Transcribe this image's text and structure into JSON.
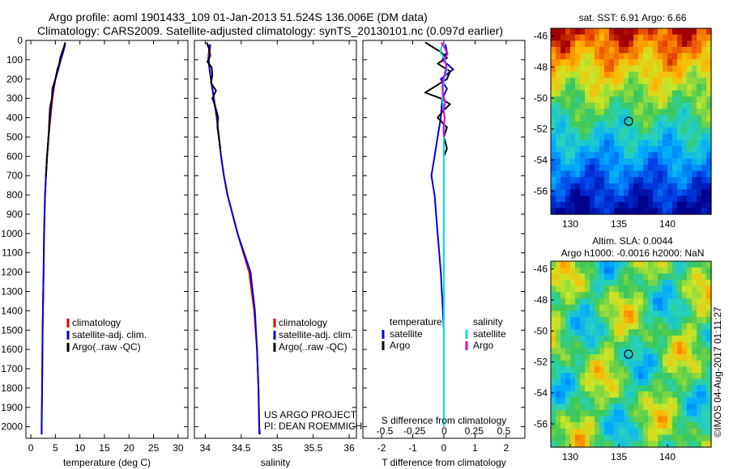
{
  "header": {
    "line1": "Argo profile: aoml 1901433_109 01-Jan-2013 51.524S 136.006E (DM data)",
    "line2": "Climatology: CARS2009. Satellite-adjusted climatology: synTS_20130101.nc (0.097d earlier)"
  },
  "colors": {
    "climatology": "#e00000",
    "satellite": "#0000e0",
    "argo": "#000000",
    "sal_satellite": "#00e0e0",
    "sal_argo": "#e000e0"
  },
  "chart_data": [
    {
      "id": "temperature",
      "type": "line",
      "xlabel": "temperature (deg C)",
      "xlim": [
        -1,
        32
      ],
      "xticks": [
        0,
        5,
        10,
        15,
        20,
        25,
        30
      ],
      "xticklabels": [
        "0",
        "5",
        "10",
        "15",
        "20",
        "25",
        "30"
      ],
      "ylim": [
        2060,
        0
      ],
      "yticks": [
        0,
        100,
        200,
        300,
        400,
        500,
        600,
        700,
        800,
        900,
        1000,
        1100,
        1200,
        1300,
        1400,
        1500,
        1600,
        1700,
        1800,
        1900,
        2000
      ],
      "legend": [
        "climatology",
        "satellite-adj. clim.",
        "Argo(..raw -QC)"
      ],
      "series": [
        {
          "name": "climatology",
          "color": "#e00000",
          "depth": [
            20,
            60,
            100,
            150,
            200,
            250,
            300,
            400,
            500,
            600,
            700,
            800,
            1000,
            1200,
            1500,
            1800,
            2000,
            2040
          ],
          "values": [
            6.9,
            6.5,
            6.1,
            5.5,
            5.0,
            4.7,
            4.4,
            4.0,
            3.6,
            3.3,
            3.1,
            2.9,
            2.7,
            2.6,
            2.4,
            2.3,
            2.2,
            2.2
          ]
        },
        {
          "name": "satellite-adj. clim.",
          "color": "#0000e0",
          "depth": [
            20,
            60,
            100,
            150,
            200,
            250,
            300,
            400,
            500,
            600,
            700,
            800,
            1000,
            1200,
            1500,
            1800,
            2000,
            2040
          ],
          "values": [
            7.0,
            6.6,
            6.1,
            5.6,
            5.0,
            4.6,
            4.3,
            3.9,
            3.6,
            3.3,
            3.1,
            2.9,
            2.7,
            2.6,
            2.4,
            2.3,
            2.2,
            2.2
          ]
        },
        {
          "name": "Argo(..raw -QC)",
          "color": "#000000",
          "depth": [
            10,
            30,
            60,
            90,
            120,
            150,
            200,
            250,
            300,
            350,
            400,
            500,
            600,
            700
          ],
          "values": [
            7.0,
            6.8,
            6.4,
            6.0,
            5.8,
            5.4,
            5.0,
            4.4,
            4.3,
            3.9,
            3.8,
            3.6,
            3.3,
            3.1
          ]
        }
      ]
    },
    {
      "id": "salinity",
      "type": "line",
      "xlabel": "salinity",
      "xlim": [
        33.85,
        36.1
      ],
      "xticks": [
        34,
        34.5,
        35,
        35.5,
        36
      ],
      "xticklabels": [
        "34",
        "34.5",
        "35",
        "35.5",
        "36"
      ],
      "ylim": [
        2060,
        0
      ],
      "legend": [
        "climatology",
        "satellite-adj. clim.",
        "Argo(..raw -QC)"
      ],
      "annotation": [
        "US ARGO PROJECT",
        "PI: DEAN ROEMMICH"
      ],
      "series": [
        {
          "name": "climatology",
          "color": "#e00000",
          "depth": [
            20,
            60,
            100,
            150,
            200,
            300,
            400,
            500,
            600,
            700,
            800,
            900,
            1000,
            1100,
            1200,
            1400,
            1600,
            1800,
            2000,
            2040
          ],
          "values": [
            34.06,
            34.05,
            34.04,
            34.06,
            34.08,
            34.12,
            34.16,
            34.19,
            34.22,
            34.26,
            34.31,
            34.38,
            34.45,
            34.53,
            34.61,
            34.68,
            34.72,
            34.74,
            34.75,
            34.75
          ]
        },
        {
          "name": "satellite-adj. clim.",
          "color": "#0000e0",
          "depth": [
            20,
            60,
            100,
            150,
            200,
            300,
            400,
            500,
            600,
            700,
            800,
            900,
            1000,
            1100,
            1200,
            1400,
            1600,
            1800,
            2000,
            2040
          ],
          "values": [
            34.07,
            34.06,
            34.05,
            34.06,
            34.08,
            34.12,
            34.16,
            34.19,
            34.22,
            34.26,
            34.31,
            34.38,
            34.45,
            34.54,
            34.63,
            34.69,
            34.72,
            34.74,
            34.75,
            34.76
          ]
        },
        {
          "name": "Argo(..raw -QC)",
          "color": "#000000",
          "depth": [
            10,
            40,
            80,
            110,
            140,
            180,
            220,
            260,
            300,
            330,
            370,
            400,
            450,
            500,
            560
          ],
          "values": [
            34.02,
            34.05,
            34.07,
            34.03,
            34.09,
            34.1,
            34.08,
            34.15,
            34.1,
            34.13,
            34.16,
            34.18,
            34.17,
            34.19,
            34.21
          ]
        }
      ]
    },
    {
      "id": "differences",
      "type": "line",
      "xlabel": "T difference from climatology",
      "xlabel_top": "S difference from climatology",
      "xlim": [
        -2.6,
        2.6
      ],
      "xticks": [
        -2,
        -1,
        0,
        1,
        2
      ],
      "xticklabels": [
        "-2",
        "-1",
        "0",
        "1",
        "2"
      ],
      "sticks": [
        -0.5,
        -0.25,
        0,
        0.25,
        0.5
      ],
      "sticklabels": [
        "-0.5",
        "-0.25",
        "0",
        "0.25",
        "0.5"
      ],
      "ylim": [
        2060,
        0
      ],
      "legend_headers": [
        "temperature",
        "salinity"
      ],
      "legend": [
        "satellite",
        "Argo",
        "satellite",
        "Argo"
      ],
      "series": [
        {
          "name": "satellite",
          "color": "#0000e0",
          "depth": [
            20,
            60,
            100,
            150,
            200,
            250,
            300,
            400,
            500,
            600,
            700,
            800,
            1000,
            1200,
            1500,
            2000
          ],
          "values": [
            0.05,
            0.1,
            -0.05,
            0.3,
            -0.1,
            0.1,
            -0.05,
            -0.1,
            -0.2,
            -0.3,
            -0.4,
            -0.3,
            -0.2,
            -0.1,
            0.0,
            0.0
          ]
        },
        {
          "name": "Argo",
          "color": "#000000",
          "depth": [
            10,
            30,
            60,
            90,
            120,
            160,
            200,
            240,
            270,
            300,
            330,
            360,
            400,
            450,
            500,
            560,
            600,
            700
          ],
          "values": [
            -0.6,
            -0.4,
            -0.1,
            0.1,
            -0.2,
            0.2,
            0.1,
            -0.3,
            -0.6,
            -0.1,
            0.2,
            0.0,
            -0.2,
            0.1,
            0.0,
            0.1,
            0.0,
            0.0
          ]
        },
        {
          "name": "satellite",
          "color": "#00e0e0",
          "depth": [
            20,
            60,
            100,
            150,
            200,
            300,
            400,
            500,
            600,
            800,
            1000,
            1200,
            1500,
            1800,
            2000
          ],
          "values": [
            -0.05,
            -0.12,
            0.05,
            0.1,
            0.0,
            -0.05,
            0.02,
            0.0,
            0.0,
            0.0,
            0.0,
            0.0,
            0.0,
            0.0,
            0.0
          ]
        },
        {
          "name": "Argo",
          "color": "#e000e0",
          "depth": [
            10,
            40,
            70,
            100,
            130,
            160,
            200,
            240,
            280,
            320,
            360,
            400,
            450,
            500
          ],
          "values": [
            -0.08,
            0.03,
            0.12,
            0.0,
            0.08,
            0.05,
            -0.02,
            -0.05,
            -0.03,
            0.05,
            -0.02,
            0.03,
            -0.01,
            0.0
          ]
        }
      ]
    },
    {
      "id": "sst-map",
      "type": "heatmap",
      "title": "sat. SST: 6.91  Argo: 6.66",
      "xlim": [
        128,
        144.5
      ],
      "ylim": [
        -57.5,
        -45.5
      ],
      "xticks": [
        130,
        135,
        140
      ],
      "xticklabels": [
        "130",
        "135",
        "140"
      ],
      "yticks": [
        -46,
        -48,
        -50,
        -52,
        -54,
        -56
      ],
      "yticklabels": [
        "-46",
        "-48",
        "-50",
        "-52",
        "-54",
        "-56"
      ],
      "marker": {
        "lon": 136.0,
        "lat": -51.5
      }
    },
    {
      "id": "sla-map",
      "type": "heatmap",
      "title_lines": [
        "Altim. SLA: 0.0044",
        "Argo h1000: -0.0016 h2000: NaN"
      ],
      "xlim": [
        128,
        144.5
      ],
      "ylim": [
        -57.5,
        -45.5
      ],
      "xticks": [
        130,
        135,
        140
      ],
      "xticklabels": [
        "130",
        "135",
        "140"
      ],
      "yticks": [
        -46,
        -48,
        -50,
        -52,
        -54,
        -56
      ],
      "yticklabels": [
        "-46",
        "-48",
        "-50",
        "-52",
        "-54",
        "-56"
      ],
      "marker": {
        "lon": 136.0,
        "lat": -51.5
      }
    }
  ],
  "credit": "©IMOS 04-Aug-2017 01:11:27"
}
